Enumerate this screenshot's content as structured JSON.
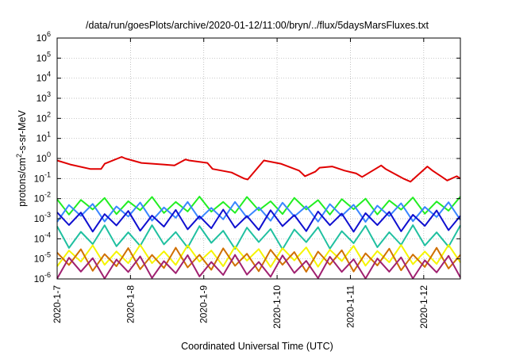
{
  "chart_data": {
    "type": "line",
    "title": "/data/run/goesPlots/archive/2020-01-12/11:00/bryn/../flux/5daysMarsFluxes.txt",
    "xlabel": "Coordinated Universal Time (UTC)",
    "ylabel_parts": [
      "protons/cm",
      "2",
      "-s-sr-MeV"
    ],
    "y_scale": "log",
    "ylim": [
      1e-06,
      1000000.0
    ],
    "y_ticks": [
      {
        "value": 1e-06,
        "base": "10",
        "exp": "-6"
      },
      {
        "value": 1e-05,
        "base": "10",
        "exp": "-5"
      },
      {
        "value": 0.0001,
        "base": "10",
        "exp": "-4"
      },
      {
        "value": 0.001,
        "base": "10",
        "exp": "-3"
      },
      {
        "value": 0.01,
        "base": "10",
        "exp": "-2"
      },
      {
        "value": 0.1,
        "base": "10",
        "exp": "-1"
      },
      {
        "value": 1,
        "base": "10",
        "exp": "0"
      },
      {
        "value": 10.0,
        "base": "10",
        "exp": "1"
      },
      {
        "value": 100.0,
        "base": "10",
        "exp": "2"
      },
      {
        "value": 1000.0,
        "base": "10",
        "exp": "3"
      },
      {
        "value": 10000.0,
        "base": "10",
        "exp": "4"
      },
      {
        "value": 100000.0,
        "base": "10",
        "exp": "5"
      },
      {
        "value": 1000000.0,
        "base": "10",
        "exp": "6"
      }
    ],
    "xlim": [
      0,
      5.5
    ],
    "x_ticks": [
      {
        "value": 0,
        "label": "2020-1-7"
      },
      {
        "value": 1,
        "label": "2020-1-8"
      },
      {
        "value": 2,
        "label": "2020-1-9"
      },
      {
        "value": 3,
        "label": "2020-1-10"
      },
      {
        "value": 4,
        "label": "2020-1-11"
      },
      {
        "value": 5,
        "label": "2020-1-12"
      }
    ],
    "grid": true,
    "legend": "none",
    "series": [
      {
        "color": "#e00000",
        "x": [
          0,
          0.18,
          0.45,
          0.6,
          0.65,
          0.88,
          0.93,
          1.15,
          1.45,
          1.6,
          1.75,
          1.8,
          2.05,
          2.12,
          2.38,
          2.45,
          2.55,
          2.6,
          2.82,
          3.05,
          3.3,
          3.38,
          3.52,
          3.58,
          3.75,
          3.92,
          4.08,
          4.16,
          4.42,
          4.48,
          4.72,
          4.82,
          5.05,
          5.12,
          5.25,
          5.32,
          5.45,
          5.5
        ],
        "y": [
          0.8,
          0.5,
          0.3,
          0.3,
          0.55,
          1.2,
          1.0,
          0.6,
          0.5,
          0.45,
          0.9,
          0.8,
          0.6,
          0.3,
          0.2,
          0.15,
          0.1,
          0.09,
          0.8,
          0.55,
          0.25,
          0.13,
          0.22,
          0.35,
          0.4,
          0.25,
          0.18,
          0.12,
          0.45,
          0.3,
          0.1,
          0.07,
          0.4,
          0.25,
          0.12,
          0.08,
          0.13,
          0.1
        ]
      },
      {
        "color": "#22ee22",
        "mean": 0.0045,
        "amp": 0.45,
        "phase": 0.0
      },
      {
        "color": "#3a86ff",
        "mean": 0.0022,
        "amp": 0.5,
        "phase": 0.3
      },
      {
        "color": "#1010d0",
        "mean": 0.0008,
        "amp": 0.55,
        "phase": 0.6
      },
      {
        "color": "#20c0a0",
        "mean": 0.00012,
        "amp": 0.6,
        "phase": 0.15
      },
      {
        "color": "#f5f500",
        "mean": 1.4e-05,
        "amp": 0.55,
        "phase": 0.45
      },
      {
        "color": "#d07000",
        "mean": 9e-06,
        "amp": 0.6,
        "phase": 0.7
      },
      {
        "color": "#a02070",
        "mean": 4e-06,
        "amp": 0.6,
        "phase": 0.25
      }
    ]
  }
}
